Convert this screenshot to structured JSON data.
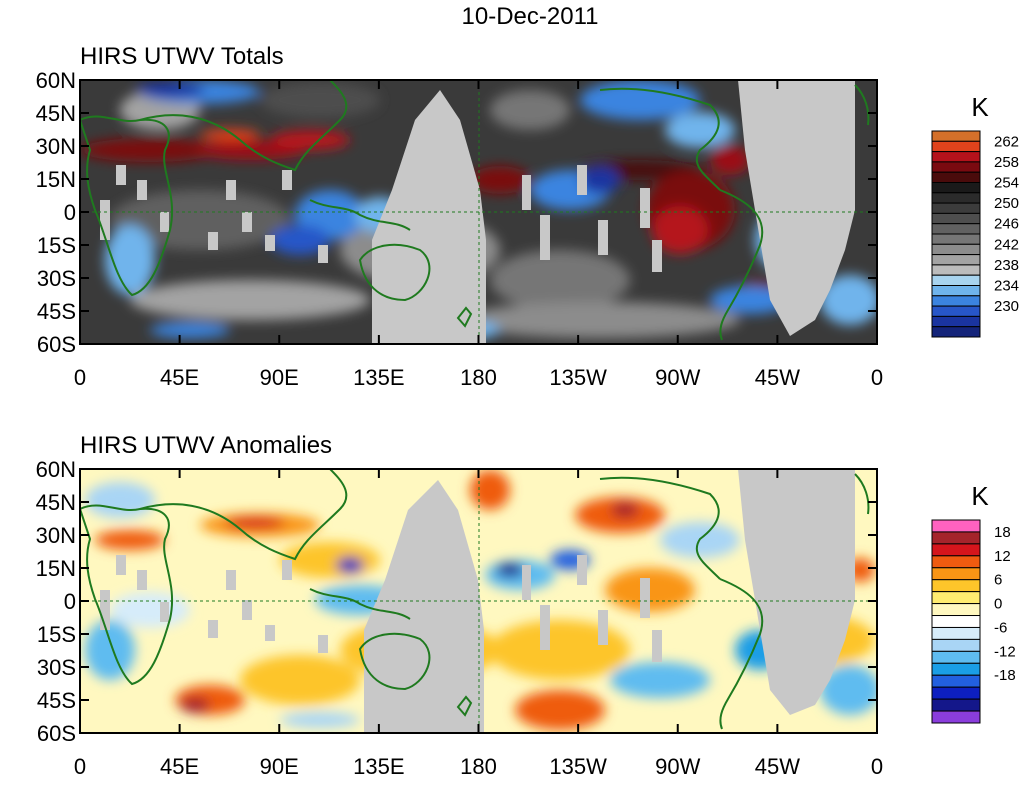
{
  "figure": {
    "date_title": "10-Dec-2011"
  },
  "axes": {
    "lat_ticks": [
      "60N",
      "45N",
      "30N",
      "15N",
      "0",
      "15S",
      "30S",
      "45S",
      "60S"
    ],
    "lon_ticks": [
      "0",
      "45E",
      "90E",
      "135E",
      "180",
      "135W",
      "90W",
      "45W",
      "0"
    ]
  },
  "colors": {
    "missing_data": "#c8c8c8",
    "coastline": "#1f7a1f",
    "reference_line": "#1f7a1f"
  },
  "panels": [
    {
      "title": "HIRS UTWV Totals",
      "colorbar": {
        "unit": "K",
        "labels": [
          "262",
          "258",
          "254",
          "250",
          "246",
          "242",
          "238",
          "234",
          "230"
        ],
        "colors_top_to_bottom": [
          "#d4702a",
          "#e0431c",
          "#b5121b",
          "#7a0a10",
          "#4a0b0b",
          "#1a1a1a",
          "#2b2b2b",
          "#3c3c3c",
          "#4e4e4e",
          "#616161",
          "#767676",
          "#8c8c8c",
          "#a3a3a3",
          "#bcbcbc",
          "#a8d4ef",
          "#6fb4ec",
          "#3b84e0",
          "#2756c8",
          "#1a34a0",
          "#14247a"
        ],
        "background_scheme": "grey"
      }
    },
    {
      "title": "HIRS UTWV Anomalies",
      "colorbar": {
        "unit": "K",
        "labels": [
          "18",
          "12",
          "6",
          "0",
          "-6",
          "-12",
          "-18"
        ],
        "colors_top_to_bottom": [
          "#ff62c0",
          "#a5242b",
          "#d5151c",
          "#ef5b10",
          "#f99515",
          "#fdc52a",
          "#ffec70",
          "#fff8c0",
          "#ffffff",
          "#d6ecfa",
          "#a9d5f5",
          "#5fbcf0",
          "#1a9ee6",
          "#2260e0",
          "#0d1fc0",
          "#14178a",
          "#8a3ddc"
        ],
        "background_scheme": "anomaly"
      }
    }
  ]
}
